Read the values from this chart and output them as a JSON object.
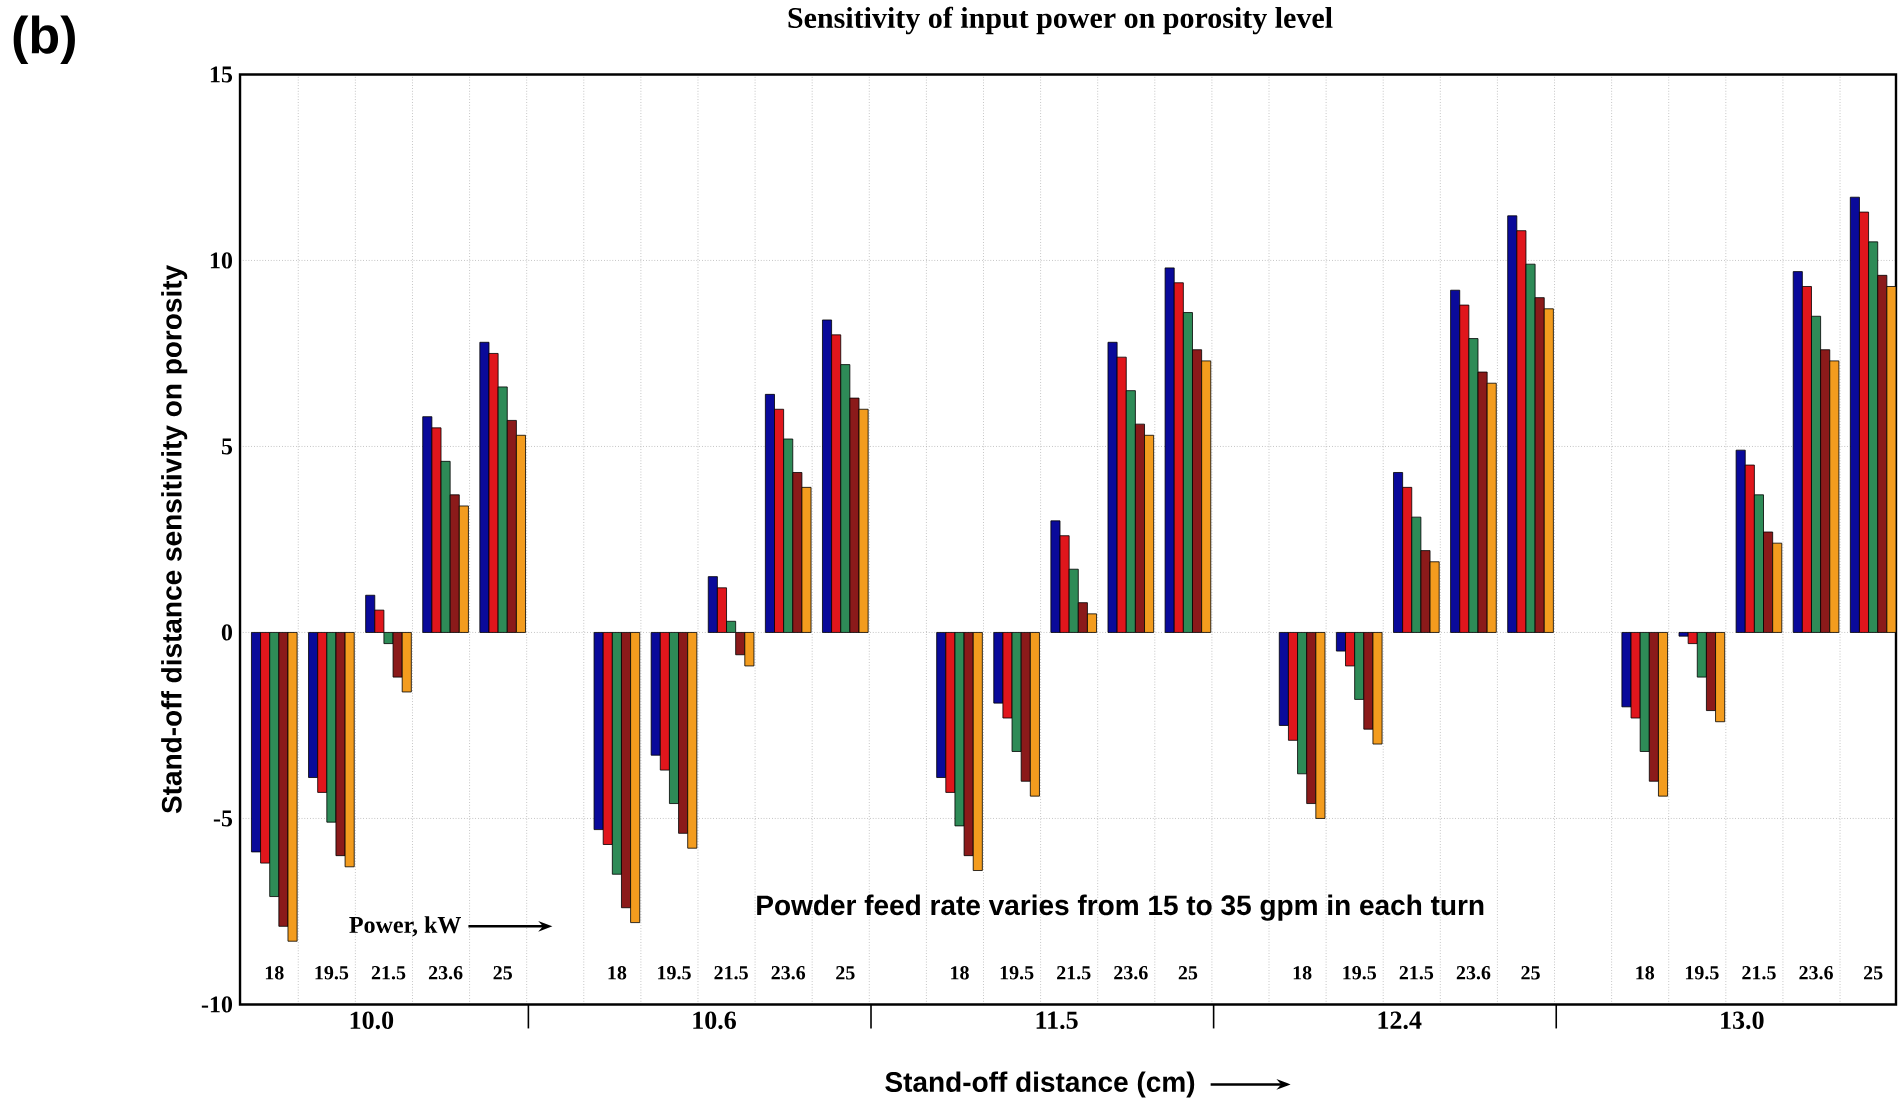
{
  "chart_data": {
    "type": "bar",
    "title": "Sensitivity of input power on porosity level",
    "xlabel": "Stand-off distance (cm)",
    "ylabel": "Stand-off distance sensitivity on porosity",
    "categories": [
      "18",
      "19.5",
      "21.5",
      "23.6",
      "25",
      null,
      "18",
      "19.5",
      "21.5",
      "23.6",
      "25",
      null,
      "18",
      "19.5",
      "21.5",
      "23.6",
      "25",
      null,
      "18",
      "19.5",
      "21.5",
      "23.6",
      "25",
      null,
      "18",
      "19.5",
      "21.5",
      "23.6",
      "25"
    ],
    "series": [
      {
        "color": "#0a0a9a",
        "values": [
          -5.9,
          -3.9,
          1.0,
          5.8,
          7.8,
          null,
          -5.3,
          -3.3,
          1.5,
          6.4,
          8.4,
          null,
          -3.9,
          -1.9,
          3.0,
          7.8,
          9.8,
          null,
          -2.5,
          -0.5,
          4.3,
          9.2,
          11.2,
          null,
          -2.0,
          -0.1,
          4.9,
          9.7,
          11.7
        ]
      },
      {
        "color": "#e0161c",
        "values": [
          -6.2,
          -4.3,
          0.6,
          5.5,
          7.5,
          null,
          -5.7,
          -3.7,
          1.2,
          6.0,
          8.0,
          null,
          -4.3,
          -2.3,
          2.6,
          7.4,
          9.4,
          null,
          -2.9,
          -0.9,
          3.9,
          8.8,
          10.8,
          null,
          -2.3,
          -0.3,
          4.5,
          9.3,
          11.3
        ]
      },
      {
        "color": "#2e8b57",
        "values": [
          -7.1,
          -5.1,
          -0.3,
          4.6,
          6.6,
          null,
          -6.5,
          -4.6,
          0.3,
          5.2,
          7.2,
          null,
          -5.2,
          -3.2,
          1.7,
          6.5,
          8.6,
          null,
          -3.8,
          -1.8,
          3.1,
          7.9,
          9.9,
          null,
          -3.2,
          -1.2,
          3.7,
          8.5,
          10.5
        ]
      },
      {
        "color": "#8b1a1a",
        "values": [
          -7.9,
          -6.0,
          -1.2,
          3.7,
          5.7,
          null,
          -7.4,
          -5.4,
          -0.6,
          4.3,
          6.3,
          null,
          -6.0,
          -4.0,
          0.8,
          5.6,
          7.6,
          null,
          -4.6,
          -2.6,
          2.2,
          7.0,
          9.0,
          null,
          -4.0,
          -2.1,
          2.7,
          7.6,
          9.6
        ]
      },
      {
        "color": "#f39c1e",
        "values": [
          -8.3,
          -6.3,
          -1.6,
          3.4,
          5.3,
          null,
          -7.8,
          -5.8,
          -0.9,
          3.9,
          6.0,
          null,
          -6.4,
          -4.4,
          0.5,
          5.3,
          7.3,
          null,
          -5.0,
          -3.0,
          1.9,
          6.7,
          8.7,
          null,
          -4.4,
          -2.4,
          2.4,
          7.3,
          9.3
        ]
      }
    ],
    "ylim": [
      -10,
      15
    ],
    "yticks": [
      -10,
      -5,
      0,
      5,
      10,
      15
    ],
    "grid": true,
    "annotations": [
      "(b)",
      "Power, kW",
      "Powder feed rate varies from 15 to 35 gpm in each turn",
      "10.0",
      "10.6",
      "11.5",
      "12.4",
      "13.0"
    ]
  }
}
